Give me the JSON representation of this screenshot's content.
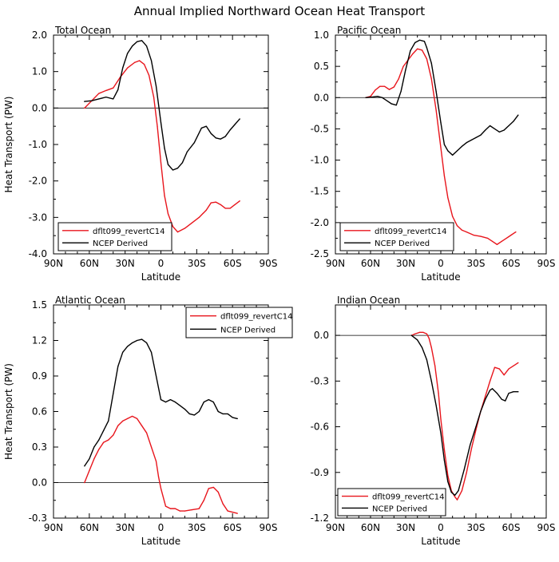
{
  "figure_title": "Annual Implied Northward Ocean Heat Transport",
  "chart_data": [
    {
      "type": "line",
      "title": "Total Ocean",
      "xlabel": "Latitude",
      "ylabel": "Heat Transport (PW)",
      "xlim": [
        90,
        -90
      ],
      "ylim": [
        -4.0,
        2.0
      ],
      "xticks": [
        90,
        60,
        30,
        0,
        -30,
        -60,
        -90
      ],
      "xtick_labels": [
        "90N",
        "60N",
        "30N",
        "0",
        "30S",
        "60S",
        "90S"
      ],
      "yticks": [
        -4.0,
        -3.0,
        -2.0,
        -1.0,
        0.0,
        1.0,
        2.0
      ],
      "ytick_labels": [
        "-4.0",
        "-3.0",
        "-2.0",
        "-1.0",
        "0.0",
        "1.0",
        "2.0"
      ],
      "zero_line": true,
      "legend_position": "bottom-left",
      "series": [
        {
          "name": "dflt099_revertC14",
          "color": "#e8151c",
          "x": [
            64,
            58,
            52,
            46,
            40,
            34,
            28,
            22,
            18,
            14,
            10,
            6,
            3,
            0,
            -3,
            -6,
            -10,
            -14,
            -20,
            -26,
            -32,
            -38,
            -42,
            -46,
            -50,
            -54,
            -58,
            -62,
            -66
          ],
          "y": [
            0.0,
            0.2,
            0.4,
            0.48,
            0.55,
            0.85,
            1.1,
            1.25,
            1.3,
            1.2,
            0.9,
            0.3,
            -0.5,
            -1.5,
            -2.4,
            -2.9,
            -3.25,
            -3.4,
            -3.3,
            -3.15,
            -3.0,
            -2.8,
            -2.6,
            -2.58,
            -2.65,
            -2.75,
            -2.75,
            -2.65,
            -2.55
          ]
        },
        {
          "name": "NCEP Derived",
          "color": "#000000",
          "x": [
            64,
            58,
            52,
            46,
            40,
            36,
            32,
            28,
            24,
            20,
            16,
            12,
            8,
            4,
            0,
            -3,
            -6,
            -10,
            -14,
            -18,
            -22,
            -28,
            -34,
            -38,
            -42,
            -46,
            -50,
            -54,
            -58,
            -62,
            -66
          ],
          "y": [
            0.18,
            0.2,
            0.25,
            0.3,
            0.25,
            0.5,
            1.1,
            1.5,
            1.7,
            1.82,
            1.85,
            1.7,
            1.3,
            0.6,
            -0.4,
            -1.1,
            -1.55,
            -1.7,
            -1.65,
            -1.5,
            -1.2,
            -0.95,
            -0.55,
            -0.5,
            -0.7,
            -0.82,
            -0.85,
            -0.78,
            -0.6,
            -0.45,
            -0.3
          ]
        }
      ]
    },
    {
      "type": "line",
      "title": "Pacific Ocean",
      "xlabel": "Latitude",
      "ylabel": "",
      "xlim": [
        90,
        -90
      ],
      "ylim": [
        -2.5,
        1.0
      ],
      "xticks": [
        90,
        60,
        30,
        0,
        -30,
        -60,
        -90
      ],
      "xtick_labels": [
        "90N",
        "60N",
        "30N",
        "0",
        "30S",
        "60S",
        "90S"
      ],
      "yticks": [
        -2.5,
        -2.0,
        -1.5,
        -1.0,
        -0.5,
        0.0,
        0.5,
        1.0
      ],
      "ytick_labels": [
        "-2.5",
        "-2.0",
        "-1.5",
        "-1.0",
        "-0.5",
        "0.0",
        "0.5",
        "1.0"
      ],
      "zero_line": true,
      "legend_position": "bottom-left",
      "series": [
        {
          "name": "dflt099_revertC14",
          "color": "#e8151c",
          "x": [
            64,
            60,
            56,
            52,
            48,
            44,
            40,
            36,
            32,
            28,
            24,
            20,
            16,
            12,
            8,
            4,
            0,
            -3,
            -6,
            -10,
            -14,
            -18,
            -22,
            -28,
            -34,
            -40,
            -44,
            -48,
            -52,
            -56,
            -60,
            -64
          ],
          "y": [
            0.0,
            0.02,
            0.12,
            0.18,
            0.18,
            0.13,
            0.17,
            0.3,
            0.5,
            0.6,
            0.7,
            0.78,
            0.76,
            0.62,
            0.3,
            -0.2,
            -0.8,
            -1.25,
            -1.6,
            -1.9,
            -2.05,
            -2.12,
            -2.15,
            -2.2,
            -2.22,
            -2.25,
            -2.3,
            -2.35,
            -2.3,
            -2.25,
            -2.2,
            -2.15
          ]
        },
        {
          "name": "NCEP Derived",
          "color": "#000000",
          "x": [
            64,
            58,
            54,
            50,
            46,
            42,
            38,
            34,
            30,
            26,
            22,
            18,
            14,
            12,
            8,
            4,
            0,
            -3,
            -6,
            -10,
            -14,
            -18,
            -22,
            -26,
            -30,
            -34,
            -38,
            -42,
            -46,
            -50,
            -54,
            -58,
            -62,
            -66
          ],
          "y": [
            0.0,
            0.01,
            0.02,
            0.0,
            -0.05,
            -0.1,
            -0.12,
            0.1,
            0.45,
            0.75,
            0.88,
            0.92,
            0.9,
            0.8,
            0.55,
            0.1,
            -0.4,
            -0.75,
            -0.85,
            -0.92,
            -0.85,
            -0.78,
            -0.72,
            -0.68,
            -0.64,
            -0.6,
            -0.52,
            -0.45,
            -0.5,
            -0.55,
            -0.52,
            -0.45,
            -0.38,
            -0.28
          ]
        }
      ]
    },
    {
      "type": "line",
      "title": "Atlantic Ocean",
      "xlabel": "Latitude",
      "ylabel": "Heat Transport (PW)",
      "xlim": [
        90,
        -90
      ],
      "ylim": [
        -0.3,
        1.5
      ],
      "xticks": [
        90,
        60,
        30,
        0,
        -30,
        -60,
        -90
      ],
      "xtick_labels": [
        "90N",
        "60N",
        "30N",
        "0",
        "30S",
        "60S",
        "90S"
      ],
      "yticks": [
        -0.3,
        0.0,
        0.3,
        0.6,
        0.9,
        1.2,
        1.5
      ],
      "ytick_labels": [
        "-0.3",
        "0.0",
        "0.3",
        "0.6",
        "0.9",
        "1.2",
        "1.5"
      ],
      "zero_line": true,
      "legend_position": "top-right",
      "series": [
        {
          "name": "dflt099_revertC14",
          "color": "#e8151c",
          "x": [
            64,
            60,
            56,
            52,
            48,
            44,
            40,
            36,
            32,
            28,
            24,
            20,
            16,
            12,
            8,
            4,
            2,
            0,
            -4,
            -8,
            -12,
            -16,
            -20,
            -26,
            -32,
            -36,
            -40,
            -44,
            -48,
            -52,
            -56,
            -60,
            -64
          ],
          "y": [
            0.0,
            0.1,
            0.2,
            0.28,
            0.34,
            0.36,
            0.4,
            0.48,
            0.52,
            0.54,
            0.56,
            0.54,
            0.48,
            0.42,
            0.3,
            0.18,
            0.05,
            -0.05,
            -0.2,
            -0.22,
            -0.22,
            -0.24,
            -0.24,
            -0.23,
            -0.22,
            -0.15,
            -0.05,
            -0.04,
            -0.08,
            -0.18,
            -0.24,
            -0.25,
            -0.26
          ]
        },
        {
          "name": "NCEP Derived",
          "color": "#000000",
          "x": [
            64,
            60,
            56,
            52,
            48,
            44,
            40,
            36,
            32,
            28,
            24,
            20,
            16,
            12,
            8,
            6,
            4,
            2,
            0,
            -4,
            -8,
            -12,
            -16,
            -20,
            -24,
            -28,
            -32,
            -36,
            -40,
            -44,
            -48,
            -52,
            -56,
            -60,
            -64
          ],
          "y": [
            0.14,
            0.2,
            0.3,
            0.36,
            0.44,
            0.52,
            0.75,
            0.98,
            1.1,
            1.15,
            1.18,
            1.2,
            1.21,
            1.18,
            1.1,
            1.0,
            0.9,
            0.8,
            0.7,
            0.68,
            0.7,
            0.68,
            0.65,
            0.62,
            0.58,
            0.57,
            0.6,
            0.68,
            0.7,
            0.68,
            0.6,
            0.58,
            0.58,
            0.55,
            0.54
          ]
        }
      ]
    },
    {
      "type": "line",
      "title": "Indian Ocean",
      "xlabel": "Latitude",
      "ylabel": "",
      "xlim": [
        90,
        -90
      ],
      "ylim": [
        -1.2,
        0.2
      ],
      "xticks": [
        90,
        60,
        30,
        0,
        -30,
        -60,
        -90
      ],
      "xtick_labels": [
        "90N",
        "60N",
        "30N",
        "0",
        "30S",
        "60S",
        "90S"
      ],
      "yticks": [
        -1.2,
        -0.9,
        -0.6,
        -0.3,
        0.0
      ],
      "ytick_labels": [
        "-1.2",
        "-0.9",
        "-0.6",
        "-0.3",
        "0.0"
      ],
      "zero_line": true,
      "legend_position": "bottom-left",
      "series": [
        {
          "name": "dflt099_revertC14",
          "color": "#e8151c",
          "x": [
            25,
            22,
            18,
            15,
            12,
            10,
            8,
            5,
            2,
            0,
            -3,
            -6,
            -9,
            -12,
            -14,
            -18,
            -22,
            -26,
            -30,
            -34,
            -38,
            -42,
            -46,
            -50,
            -54,
            -58,
            -62,
            -66
          ],
          "y": [
            0.0,
            0.01,
            0.02,
            0.02,
            0.01,
            -0.02,
            -0.08,
            -0.2,
            -0.38,
            -0.55,
            -0.75,
            -0.92,
            -1.02,
            -1.06,
            -1.08,
            -1.02,
            -0.9,
            -0.75,
            -0.62,
            -0.5,
            -0.4,
            -0.3,
            -0.21,
            -0.22,
            -0.26,
            -0.22,
            -0.2,
            -0.18
          ]
        },
        {
          "name": "NCEP Derived",
          "color": "#000000",
          "x": [
            25,
            20,
            16,
            12,
            8,
            4,
            0,
            -3,
            -6,
            -9,
            -12,
            -15,
            -20,
            -25,
            -30,
            -34,
            -38,
            -42,
            -44,
            -48,
            -52,
            -55,
            -58,
            -62,
            -66
          ],
          "y": [
            0.0,
            -0.03,
            -0.08,
            -0.16,
            -0.3,
            -0.46,
            -0.64,
            -0.82,
            -0.96,
            -1.03,
            -1.05,
            -1.02,
            -0.88,
            -0.72,
            -0.6,
            -0.5,
            -0.42,
            -0.36,
            -0.35,
            -0.38,
            -0.42,
            -0.43,
            -0.38,
            -0.37,
            -0.37
          ]
        }
      ]
    }
  ]
}
